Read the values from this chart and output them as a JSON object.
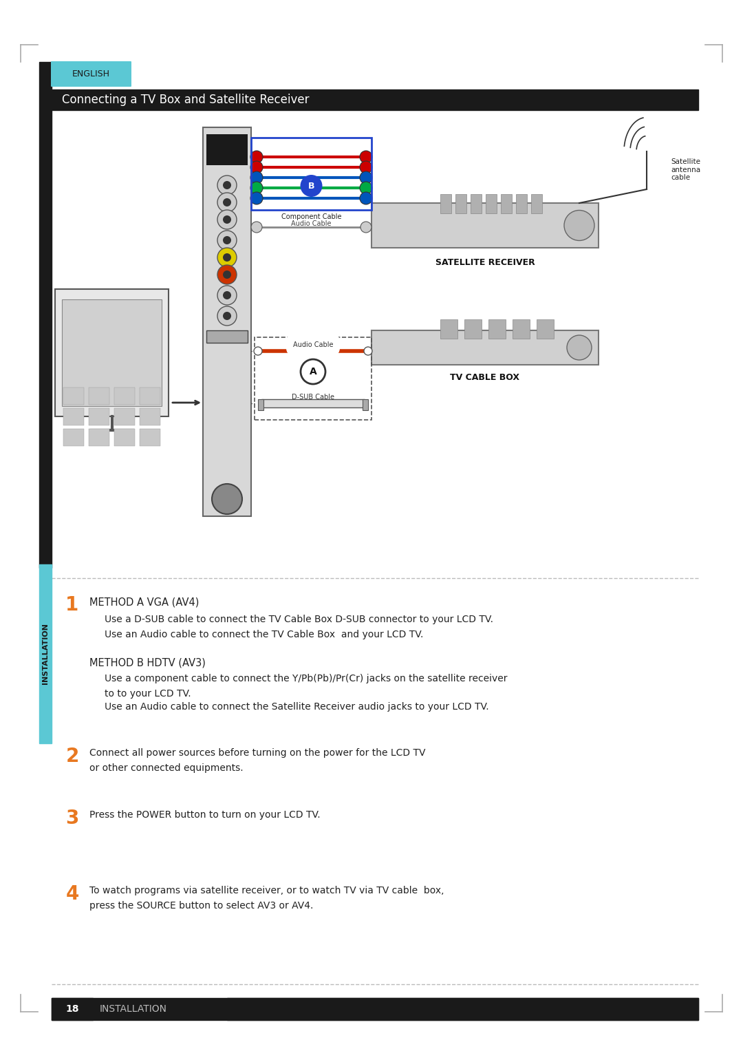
{
  "page_bg": "#ffffff",
  "left_bar_color": "#1a1a1a",
  "english_tab_color": "#5bc8d4",
  "english_tab_text": "ENGLISH",
  "title_bar_color": "#1a1a1a",
  "title_text": "Connecting a TV Box and Satellite Receiver",
  "title_text_color": "#ffffff",
  "installation_sidebar_color": "#5bc8d4",
  "installation_text": "INSTALLATION",
  "step_number_color": "#e87820",
  "step1_num": "1",
  "step1_head": "METHOD A VGA (AV4)",
  "step1_line1": "Use a D-SUB cable to connect the TV Cable Box D-SUB connector to your LCD TV.",
  "step1_line2": "Use an Audio cable to connect the TV Cable Box  and your LCD TV.",
  "step1b_head": "METHOD B HDTV (AV3)",
  "step1b_line1": "Use a component cable to connect the Y/Pb(Pb)/Pr(Cr) jacks on the satellite receiver",
  "step1b_line2": "to to your LCD TV.",
  "step1b_line3": "Use an Audio cable to connect the Satellite Receiver audio jacks to your LCD TV.",
  "step2_num": "2",
  "step2_line1": "Connect all power sources before turning on the power for the LCD TV",
  "step2_line2": "or other connected equipments.",
  "step3_num": "3",
  "step3_line1": "Press the POWER button to turn on your LCD TV.",
  "step4_num": "4",
  "step4_line1": "To watch programs via satellite receiver, or to watch TV via TV cable  box,",
  "step4_line2": "press the SOURCE button to select AV3 or AV4.",
  "footer_page_num": "18",
  "footer_text": "INSTALLATION",
  "footer_bar_color": "#1a1a1a",
  "dotted_line_color": "#bbbbbb"
}
